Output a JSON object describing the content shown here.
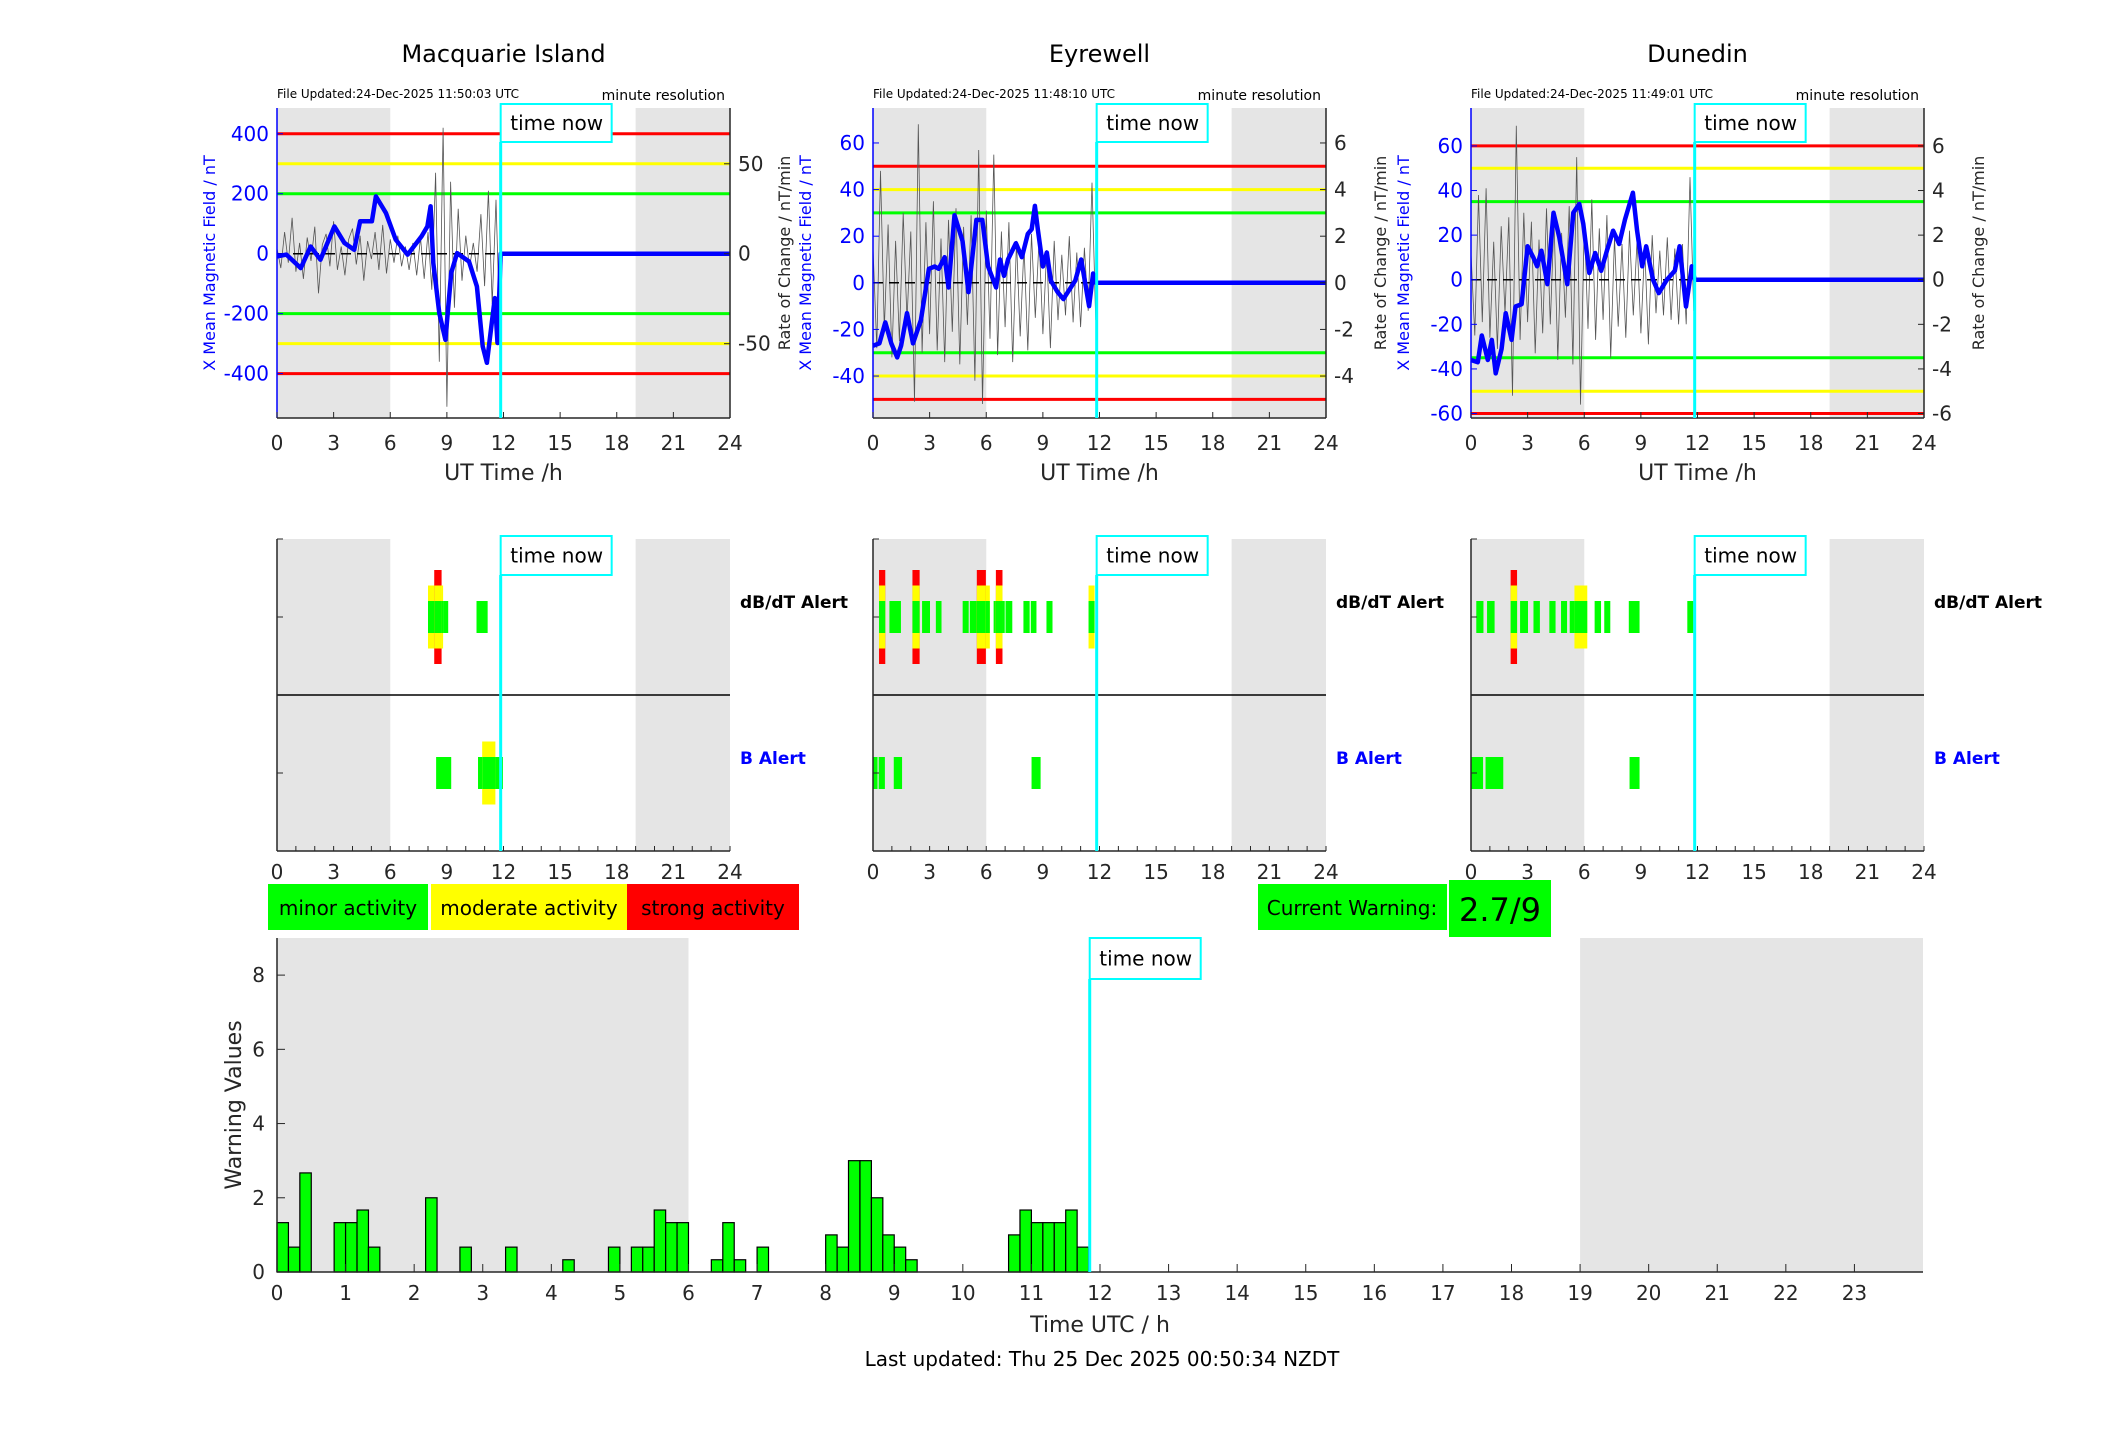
{
  "time_now_label": "time now",
  "now_hours": 11.85,
  "night_shading": [
    [
      0,
      6
    ],
    [
      19,
      24
    ]
  ],
  "x_ticks_hours": [
    0,
    3,
    6,
    9,
    12,
    15,
    18,
    21,
    24
  ],
  "colors": {
    "minor": "#00ff00",
    "moderate": "#ffff00",
    "strong": "#ff0000",
    "field": "#0000ff",
    "now": "#00ffff",
    "night": "#e5e5e5",
    "rate": "#555555"
  },
  "stations": [
    {
      "name": "Macquarie Island",
      "file_updated": "File Updated:24-Dec-2025 11:50:03 UTC",
      "resolution": "minute resolution",
      "xlabel": "UT Time /h",
      "ylabel_left": "X Mean Magnetic Field / nT",
      "ylabel_right": "Rate of Change / nT/min",
      "ylim_left": [
        -548,
        486
      ],
      "ylim_right": [
        -91.3,
        81
      ],
      "yticks_left": [
        -400,
        -200,
        0,
        200,
        400
      ],
      "yticks_right": [
        -50,
        0,
        50
      ],
      "thresholds": {
        "minor": 200,
        "moderate": 300,
        "strong": 400
      },
      "field": [
        [
          0,
          -9
        ],
        [
          0.5,
          -3
        ],
        [
          1.26,
          -48
        ],
        [
          1.78,
          24
        ],
        [
          2.3,
          -20
        ],
        [
          3.04,
          91
        ],
        [
          3.57,
          36
        ],
        [
          4.09,
          13
        ],
        [
          4.4,
          108
        ],
        [
          5.03,
          108
        ],
        [
          5.24,
          191
        ],
        [
          5.77,
          136
        ],
        [
          6.29,
          47
        ],
        [
          6.92,
          -3
        ],
        [
          7.66,
          58
        ],
        [
          7.97,
          91
        ],
        [
          8.14,
          158
        ],
        [
          8.28,
          -31
        ],
        [
          8.6,
          -198
        ],
        [
          8.92,
          -287
        ],
        [
          9.23,
          -64
        ],
        [
          9.54,
          2
        ],
        [
          10.17,
          -26
        ],
        [
          10.59,
          -109
        ],
        [
          10.9,
          -309
        ],
        [
          11.12,
          -364
        ],
        [
          11.54,
          -148
        ],
        [
          11.68,
          -298
        ],
        [
          11.85,
          0
        ],
        [
          24,
          0
        ]
      ],
      "rate": {
        "step_hours": 0.2,
        "values": [
          3,
          -8,
          12,
          -5,
          20,
          -10,
          6,
          -14,
          9,
          -4,
          15,
          -22,
          5,
          11,
          -7,
          18,
          -9,
          4,
          -12,
          8,
          14,
          -6,
          10,
          -15,
          7,
          -3,
          12,
          -9,
          16,
          -11,
          8,
          -5,
          10,
          -7,
          4,
          -9,
          6,
          -12,
          9,
          -14,
          12,
          -20,
          45,
          -60,
          70,
          -85,
          40,
          -30,
          25,
          -15,
          10,
          -8,
          6,
          -10,
          22,
          -18,
          35,
          -28,
          30,
          -40
        ]
      },
      "alerts": {
        "dbdt_label": "dB/dT Alert",
        "b_label": "B Alert",
        "dbdt": [
          [
            8.0,
            8.33,
            2
          ],
          [
            8.33,
            8.72,
            3
          ],
          [
            8.72,
            8.8,
            2
          ],
          [
            8.8,
            9.07,
            1
          ],
          [
            10.57,
            11.16,
            1
          ]
        ],
        "b": [
          [
            8.43,
            9.23,
            1
          ],
          [
            10.65,
            10.87,
            1
          ],
          [
            10.87,
            11.57,
            2
          ],
          [
            11.57,
            11.97,
            1
          ]
        ]
      }
    },
    {
      "name": "Eyrewell",
      "file_updated": "File Updated:24-Dec-2025 11:48:10 UTC",
      "resolution": "minute resolution",
      "xlabel": "UT Time /h",
      "ylabel_left": "X Mean Magnetic Field / nT",
      "ylabel_right": "Rate of Change / nT/min",
      "ylim_left": [
        -58,
        75
      ],
      "ylim_right": [
        -5.8,
        7.5
      ],
      "yticks_left": [
        -40,
        -20,
        0,
        20,
        40,
        60
      ],
      "yticks_right": [
        -4,
        -2,
        0,
        2,
        4,
        6
      ],
      "thresholds": {
        "minor": 30,
        "moderate": 40,
        "strong": 50
      },
      "field": [
        [
          0,
          -27
        ],
        [
          0.34,
          -26
        ],
        [
          0.65,
          -17
        ],
        [
          0.97,
          -26
        ],
        [
          1.28,
          -32
        ],
        [
          1.49,
          -27
        ],
        [
          1.8,
          -13
        ],
        [
          2.12,
          -26
        ],
        [
          2.54,
          -16
        ],
        [
          2.96,
          6
        ],
        [
          3.27,
          7
        ],
        [
          3.48,
          6
        ],
        [
          3.8,
          11
        ],
        [
          4.0,
          -2
        ],
        [
          4.32,
          29
        ],
        [
          4.74,
          18
        ],
        [
          5.06,
          -4
        ],
        [
          5.48,
          27
        ],
        [
          5.79,
          27
        ],
        [
          6.1,
          7
        ],
        [
          6.52,
          -2
        ],
        [
          6.73,
          10
        ],
        [
          6.94,
          3
        ],
        [
          7.15,
          10
        ],
        [
          7.57,
          17
        ],
        [
          7.89,
          11
        ],
        [
          8.2,
          21
        ],
        [
          8.41,
          23
        ],
        [
          8.58,
          33
        ],
        [
          8.73,
          23
        ],
        [
          9.0,
          7
        ],
        [
          9.21,
          13
        ],
        [
          9.42,
          1
        ],
        [
          9.78,
          -4
        ],
        [
          10.09,
          -7
        ],
        [
          10.4,
          -3
        ],
        [
          10.72,
          1
        ],
        [
          11.03,
          10
        ],
        [
          11.45,
          -10
        ],
        [
          11.66,
          4
        ],
        [
          11.81,
          0
        ],
        [
          24,
          0
        ]
      ],
      "rate": {
        "step_hours": 0.2,
        "values": [
          1.5,
          -2.8,
          4.8,
          -2,
          2.5,
          -3.2,
          1.8,
          -2.5,
          3,
          -1.6,
          2.2,
          -5.1,
          6.8,
          -3,
          2.6,
          -2.2,
          3.5,
          -2.9,
          1.9,
          -3.4,
          2.7,
          -2.1,
          3.2,
          -3.5,
          2.4,
          -1.8,
          2.9,
          -4.2,
          5.7,
          -5.2,
          3.1,
          -2.4,
          5.5,
          -3.1,
          2.2,
          -1.9,
          2.6,
          -3.4,
          1.8,
          -2.3,
          1.6,
          -2.9,
          2.1,
          -1.5,
          1.9,
          -2.2,
          1.4,
          -2.8,
          1.8,
          -1.6,
          1.2,
          -1.4,
          2.0,
          -1.7,
          1.3,
          -1.9,
          1.5,
          -1.2,
          4.3,
          -1.6
        ]
      },
      "alerts": {
        "dbdt_label": "dB/dT Alert",
        "b_label": "B Alert",
        "dbdt": [
          [
            0.32,
            0.65,
            3
          ],
          [
            0.87,
            1.48,
            1
          ],
          [
            2.09,
            2.47,
            3
          ],
          [
            2.6,
            3.02,
            1
          ],
          [
            3.33,
            3.63,
            1
          ],
          [
            4.75,
            5.07,
            1
          ],
          [
            5.13,
            5.5,
            1
          ],
          [
            5.5,
            5.98,
            3
          ],
          [
            5.98,
            6.19,
            2
          ],
          [
            6.39,
            6.51,
            1
          ],
          [
            6.51,
            6.86,
            3
          ],
          [
            6.86,
            6.98,
            1
          ],
          [
            7.02,
            7.38,
            1
          ],
          [
            7.97,
            8.3,
            1
          ],
          [
            8.36,
            8.66,
            1
          ],
          [
            9.19,
            9.51,
            1
          ],
          [
            11.42,
            11.74,
            2
          ]
        ],
        "b": [
          [
            0,
            0.24,
            1
          ],
          [
            0.3,
            0.63,
            1
          ],
          [
            1.1,
            1.54,
            1
          ],
          [
            8.4,
            8.88,
            1
          ]
        ]
      }
    },
    {
      "name": "Dunedin",
      "file_updated": "File Updated:24-Dec-2025 11:49:01 UTC",
      "resolution": "minute resolution",
      "xlabel": "UT Time /h",
      "ylabel_left": "X Mean Magnetic Field / nT",
      "ylabel_right": "Rate of Change / nT/min",
      "ylim_left": [
        -62,
        77
      ],
      "ylim_right": [
        -6.2,
        7.7
      ],
      "yticks_left": [
        -60,
        -40,
        -20,
        0,
        20,
        40,
        60
      ],
      "yticks_right": [
        -6,
        -4,
        -2,
        0,
        2,
        4,
        6
      ],
      "thresholds": {
        "minor": 35,
        "moderate": 50,
        "strong": 60
      },
      "field": [
        [
          0,
          -36
        ],
        [
          0.36,
          -37
        ],
        [
          0.57,
          -25
        ],
        [
          0.89,
          -36
        ],
        [
          1.1,
          -27
        ],
        [
          1.31,
          -42
        ],
        [
          1.62,
          -31
        ],
        [
          1.84,
          -15
        ],
        [
          2.15,
          -27
        ],
        [
          2.36,
          -12
        ],
        [
          2.68,
          -11
        ],
        [
          3.0,
          15
        ],
        [
          3.3,
          10
        ],
        [
          3.5,
          6
        ],
        [
          3.73,
          13
        ],
        [
          4.05,
          -2
        ],
        [
          4.37,
          30
        ],
        [
          4.68,
          19
        ],
        [
          5.1,
          -2
        ],
        [
          5.42,
          30
        ],
        [
          5.74,
          34
        ],
        [
          5.95,
          25
        ],
        [
          6.27,
          3
        ],
        [
          6.58,
          12
        ],
        [
          6.9,
          4
        ],
        [
          7.2,
          13
        ],
        [
          7.53,
          22
        ],
        [
          7.85,
          16
        ],
        [
          8.16,
          27
        ],
        [
          8.58,
          39
        ],
        [
          8.8,
          22
        ],
        [
          9.07,
          6
        ],
        [
          9.28,
          15
        ],
        [
          9.64,
          0
        ],
        [
          9.95,
          -6
        ],
        [
          10.38,
          0
        ],
        [
          10.8,
          4
        ],
        [
          11.05,
          15
        ],
        [
          11.39,
          -12
        ],
        [
          11.7,
          6
        ],
        [
          11.85,
          0
        ],
        [
          24,
          0
        ]
      ],
      "rate": {
        "step_hours": 0.2,
        "values": [
          1.2,
          -2.5,
          3.8,
          -1.9,
          4.1,
          -2.6,
          1.7,
          -3.1,
          2.4,
          -1.5,
          2.8,
          -5.2,
          6.9,
          -2.7,
          3.0,
          -1.9,
          2.6,
          -3.3,
          1.8,
          -2.4,
          3.2,
          -2.0,
          2.7,
          -3.6,
          2.1,
          -1.7,
          3.3,
          -3.8,
          5.5,
          -5.6,
          2.6,
          -2.2,
          3.6,
          -2.7,
          2.3,
          -1.8,
          2.9,
          -3.5,
          1.9,
          -2.1,
          1.6,
          -2.6,
          2.2,
          -1.6,
          1.8,
          -2.4,
          1.5,
          -2.9,
          2.0,
          -1.5,
          1.3,
          -1.6,
          1.9,
          -1.8,
          1.4,
          -2.0,
          1.6,
          -2.0,
          4.6,
          -1.4
        ]
      },
      "alerts": {
        "dbdt_label": "dB/dT Alert",
        "b_label": "B Alert",
        "dbdt": [
          [
            0.28,
            0.66,
            1
          ],
          [
            0.85,
            1.25,
            1
          ],
          [
            2.1,
            2.44,
            3
          ],
          [
            2.6,
            3.02,
            1
          ],
          [
            3.31,
            3.65,
            1
          ],
          [
            4.15,
            4.48,
            1
          ],
          [
            4.77,
            5.09,
            1
          ],
          [
            5.23,
            5.48,
            1
          ],
          [
            5.48,
            6.16,
            2
          ],
          [
            6.55,
            6.89,
            1
          ],
          [
            7.06,
            7.38,
            1
          ],
          [
            8.36,
            8.93,
            1
          ],
          [
            11.46,
            11.78,
            1
          ]
        ],
        "b": [
          [
            0,
            0.64,
            1
          ],
          [
            0.77,
            1.71,
            1
          ],
          [
            8.4,
            8.93,
            1
          ]
        ]
      }
    }
  ],
  "legend": {
    "minor": "minor activity",
    "moderate": "moderate activity",
    "strong": "strong activity"
  },
  "current_warning": {
    "label": "Current Warning:",
    "value": "2.7/9",
    "level": 2.7,
    "max": 9
  },
  "chart_data": {
    "type": "bar",
    "ylabel": "Warning Values",
    "xlabel": "Time UTC / h",
    "xlim": [
      0,
      24
    ],
    "ylim": [
      0,
      9
    ],
    "yticks": [
      0,
      2,
      4,
      6,
      8
    ],
    "xticks": [
      0,
      1,
      2,
      3,
      4,
      5,
      6,
      7,
      8,
      9,
      10,
      11,
      12,
      13,
      14,
      15,
      16,
      17,
      18,
      19,
      20,
      21,
      22,
      23
    ],
    "bin_hours": 0.1667,
    "bars": [
      [
        0,
        1.33
      ],
      [
        0.167,
        0.67
      ],
      [
        0.333,
        2.67
      ],
      [
        0.833,
        1.33
      ],
      [
        1.0,
        1.33
      ],
      [
        1.167,
        1.67
      ],
      [
        1.333,
        0.67
      ],
      [
        2.167,
        2
      ],
      [
        2.667,
        0.67
      ],
      [
        3.333,
        0.67
      ],
      [
        4.167,
        0.33
      ],
      [
        4.833,
        0.67
      ],
      [
        5.167,
        0.67
      ],
      [
        5.333,
        0.67
      ],
      [
        5.5,
        1.67
      ],
      [
        5.667,
        1.33
      ],
      [
        5.833,
        1.33
      ],
      [
        6.333,
        0.33
      ],
      [
        6.5,
        1.33
      ],
      [
        6.667,
        0.33
      ],
      [
        7.0,
        0.67
      ],
      [
        8.0,
        1
      ],
      [
        8.167,
        0.67
      ],
      [
        8.333,
        3
      ],
      [
        8.5,
        3
      ],
      [
        8.667,
        2
      ],
      [
        8.833,
        1
      ],
      [
        9.0,
        0.67
      ],
      [
        9.167,
        0.33
      ],
      [
        10.667,
        1
      ],
      [
        10.833,
        1.67
      ],
      [
        11.0,
        1.33
      ],
      [
        11.167,
        1.33
      ],
      [
        11.333,
        1.33
      ],
      [
        11.5,
        1.67
      ],
      [
        11.667,
        0.67
      ]
    ]
  },
  "footer": "Last updated: Thu 25 Dec 2025 00:50:34 NZDT"
}
